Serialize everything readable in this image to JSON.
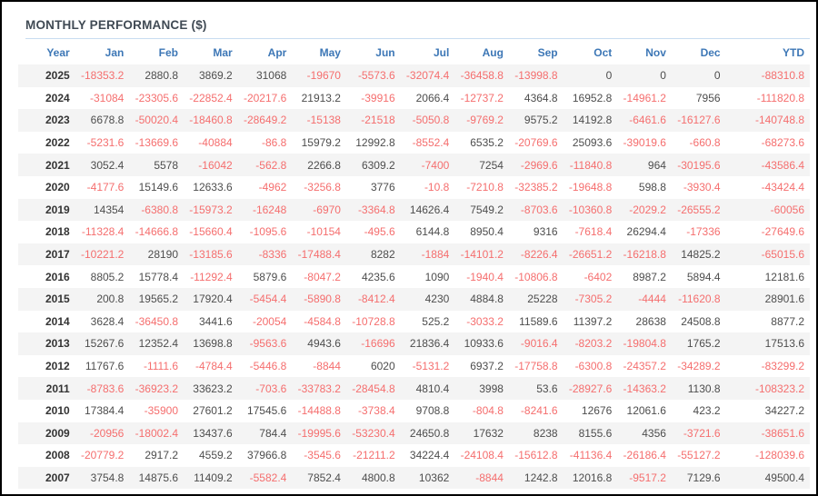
{
  "title": "MONTHLY PERFORMANCE ($)",
  "colors": {
    "frame_border": "#000000",
    "title_text": "#404a54",
    "title_underline": "#c8dcf0",
    "header_text": "#3d77b6",
    "value_text": "#4d4d4d",
    "year_text": "#333333",
    "negative_text": "#f56e6e",
    "row_stripe": "#f4f4f4"
  },
  "table": {
    "columns": [
      "Year",
      "Jan",
      "Feb",
      "Mar",
      "Apr",
      "May",
      "Jun",
      "Jul",
      "Aug",
      "Sep",
      "Oct",
      "Nov",
      "Dec",
      "YTD"
    ],
    "rows": [
      {
        "year": "2025",
        "values": [
          "-18353.2",
          "2880.8",
          "3869.2",
          "31068",
          "-19670",
          "-5573.6",
          "-32074.4",
          "-36458.8",
          "-13998.8",
          "0",
          "0",
          "0",
          "-88310.8"
        ]
      },
      {
        "year": "2024",
        "values": [
          "-31084",
          "-23305.6",
          "-22852.4",
          "-20217.6",
          "21913.2",
          "-39916",
          "2066.4",
          "-12737.2",
          "4364.8",
          "16952.8",
          "-14961.2",
          "7956",
          "-111820.8"
        ]
      },
      {
        "year": "2023",
        "values": [
          "6678.8",
          "-50020.4",
          "-18460.8",
          "-28649.2",
          "-15138",
          "-21518",
          "-5050.8",
          "-9769.2",
          "9575.2",
          "14192.8",
          "-6461.6",
          "-16127.6",
          "-140748.8"
        ]
      },
      {
        "year": "2022",
        "values": [
          "-5231.6",
          "-13669.6",
          "-40884",
          "-86.8",
          "15979.2",
          "12992.8",
          "-8552.4",
          "6535.2",
          "-20769.6",
          "25093.6",
          "-39019.6",
          "-660.8",
          "-68273.6"
        ]
      },
      {
        "year": "2021",
        "values": [
          "3052.4",
          "5578",
          "-16042",
          "-562.8",
          "2266.8",
          "6309.2",
          "-7400",
          "7254",
          "-2969.6",
          "-11840.8",
          "964",
          "-30195.6",
          "-43586.4"
        ]
      },
      {
        "year": "2020",
        "values": [
          "-4177.6",
          "15149.6",
          "12633.6",
          "-4962",
          "-3256.8",
          "3776",
          "-10.8",
          "-7210.8",
          "-32385.2",
          "-19648.8",
          "598.8",
          "-3930.4",
          "-43424.4"
        ]
      },
      {
        "year": "2019",
        "values": [
          "14354",
          "-6380.8",
          "-15973.2",
          "-16248",
          "-6970",
          "-3364.8",
          "14626.4",
          "7549.2",
          "-8703.6",
          "-10360.8",
          "-2029.2",
          "-26555.2",
          "-60056"
        ]
      },
      {
        "year": "2018",
        "values": [
          "-11328.4",
          "-14666.8",
          "-15660.4",
          "-1095.6",
          "-10154",
          "-495.6",
          "6144.8",
          "8950.4",
          "9316",
          "-7618.4",
          "26294.4",
          "-17336",
          "-27649.6"
        ]
      },
      {
        "year": "2017",
        "values": [
          "-10221.2",
          "28190",
          "-13185.6",
          "-8336",
          "-17488.4",
          "8282",
          "-1884",
          "-14101.2",
          "-8226.4",
          "-26651.2",
          "-16218.8",
          "14825.2",
          "-65015.6"
        ]
      },
      {
        "year": "2016",
        "values": [
          "8805.2",
          "15778.4",
          "-11292.4",
          "5879.6",
          "-8047.2",
          "4235.6",
          "1090",
          "-1940.4",
          "-10806.8",
          "-6402",
          "8987.2",
          "5894.4",
          "12181.6"
        ]
      },
      {
        "year": "2015",
        "values": [
          "200.8",
          "19565.2",
          "17920.4",
          "-5454.4",
          "-5890.8",
          "-8412.4",
          "4230",
          "4884.8",
          "25228",
          "-7305.2",
          "-4444",
          "-11620.8",
          "28901.6"
        ]
      },
      {
        "year": "2014",
        "values": [
          "3628.4",
          "-36450.8",
          "3441.6",
          "-20054",
          "-4584.8",
          "-10728.8",
          "525.2",
          "-3033.2",
          "11589.6",
          "11397.2",
          "28638",
          "24508.8",
          "8877.2"
        ]
      },
      {
        "year": "2013",
        "values": [
          "15267.6",
          "12352.4",
          "13698.8",
          "-9563.6",
          "4943.6",
          "-16696",
          "21836.4",
          "10933.6",
          "-9016.4",
          "-8203.2",
          "-19804.8",
          "1765.2",
          "17513.6"
        ]
      },
      {
        "year": "2012",
        "values": [
          "11767.6",
          "-1111.6",
          "-4784.4",
          "-5446.8",
          "-8844",
          "6020",
          "-5131.2",
          "6937.2",
          "-17758.8",
          "-6300.8",
          "-24357.2",
          "-34289.2",
          "-83299.2"
        ]
      },
      {
        "year": "2011",
        "values": [
          "-8783.6",
          "-36923.2",
          "33623.2",
          "-703.6",
          "-33783.2",
          "-28454.8",
          "4810.4",
          "3998",
          "53.6",
          "-28927.6",
          "-14363.2",
          "1130.8",
          "-108323.2"
        ]
      },
      {
        "year": "2010",
        "values": [
          "17384.4",
          "-35900",
          "27601.2",
          "17545.6",
          "-14488.8",
          "-3738.4",
          "9708.8",
          "-804.8",
          "-8241.6",
          "12676",
          "12061.6",
          "423.2",
          "34227.2"
        ]
      },
      {
        "year": "2009",
        "values": [
          "-20956",
          "-18002.4",
          "13437.6",
          "784.4",
          "-19995.6",
          "-53230.4",
          "24650.8",
          "17632",
          "8238",
          "8155.6",
          "4356",
          "-3721.6",
          "-38651.6"
        ]
      },
      {
        "year": "2008",
        "values": [
          "-20779.2",
          "2917.2",
          "4559.2",
          "37966.8",
          "-3545.6",
          "-21211.2",
          "34224.4",
          "-24108.4",
          "-15612.8",
          "-41136.4",
          "-26186.4",
          "-55127.2",
          "-128039.6"
        ]
      },
      {
        "year": "2007",
        "values": [
          "3754.8",
          "14875.6",
          "11409.2",
          "-5582.4",
          "7852.4",
          "4800.8",
          "10362",
          "-8844",
          "1242.8",
          "12016.8",
          "-9517.2",
          "7129.6",
          "49500.4"
        ]
      }
    ]
  }
}
